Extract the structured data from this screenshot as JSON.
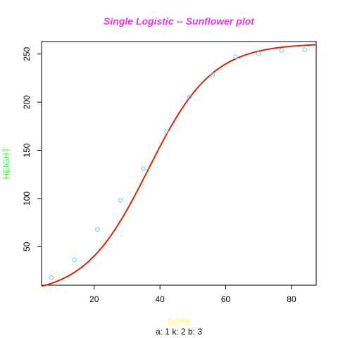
{
  "chart_data": {
    "type": "scatter",
    "title": "Single Logistic -- Sunflower plot",
    "xlabel": "DAYS",
    "ylabel": "HEIGHT",
    "subtitle": "a:  1 k:  2 b:  3",
    "xlim": [
      4,
      87.5
    ],
    "ylim": [
      10,
      263
    ],
    "xticks": [
      20,
      40,
      60,
      80
    ],
    "yticks": [
      50,
      100,
      150,
      200,
      250
    ],
    "grid": false,
    "legend": "none",
    "series": [
      {
        "type": "scatter",
        "x": [
          7,
          14,
          21,
          28,
          35,
          42,
          49,
          56,
          63,
          70,
          77,
          84
        ],
        "y": [
          17.9,
          36.4,
          67.8,
          98.1,
          131.0,
          169.5,
          205.5,
          228.3,
          247.1,
          250.5,
          253.8,
          254.5
        ]
      },
      {
        "type": "line",
        "model": "logistic",
        "params": {
          "asymptote": 261,
          "midpoint": 36.5,
          "scale": 9.7
        },
        "x_range": [
          4,
          87.5
        ]
      }
    ],
    "colors": {
      "title": "#e833e8",
      "xlabel": "#ffff33",
      "ylabel": "#33ff33",
      "points": "#66ccee",
      "curve": "#dd2200",
      "axes": "#000000"
    }
  }
}
